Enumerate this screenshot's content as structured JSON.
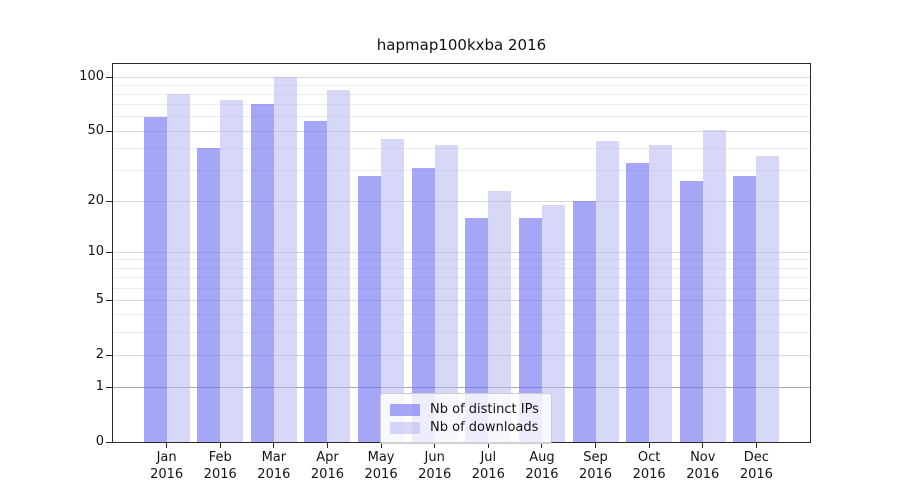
{
  "title": "hapmap100kxba 2016",
  "chart_data": {
    "type": "bar",
    "title": "hapmap100kxba 2016",
    "categories": [
      "Jan",
      "Feb",
      "Mar",
      "Apr",
      "May",
      "Jun",
      "Jul",
      "Aug",
      "Sep",
      "Oct",
      "Nov",
      "Dec"
    ],
    "category_year": "2016",
    "series": [
      {
        "name": "Nb of distinct IPs",
        "color": "#7777f2",
        "alpha": 0.65,
        "values": [
          60,
          40,
          71,
          57,
          28,
          31,
          16,
          16,
          20,
          33,
          26,
          28
        ]
      },
      {
        "name": "Nb of downloads",
        "color": "#b0b0f0",
        "alpha": 0.5,
        "values": [
          80,
          75,
          100,
          85,
          45,
          42,
          23,
          19,
          44,
          42,
          51,
          36
        ]
      }
    ],
    "yscale": "log1p",
    "ylim": [
      0,
      100
    ],
    "major_yticks": [
      100,
      50,
      20,
      10,
      5,
      2,
      1,
      0
    ],
    "minor_yticks": [
      3,
      4,
      6,
      7,
      8,
      9,
      30,
      40,
      60,
      70,
      80,
      90
    ],
    "grid": true,
    "legend_position": "lower-center",
    "colors": {
      "major_grid": "#d9d9d9",
      "minor_grid": "#ececec",
      "unit_grid": "#a8a8a8",
      "axis": "#2b2b2b",
      "text": "#141414",
      "background": "#ffffff"
    }
  }
}
